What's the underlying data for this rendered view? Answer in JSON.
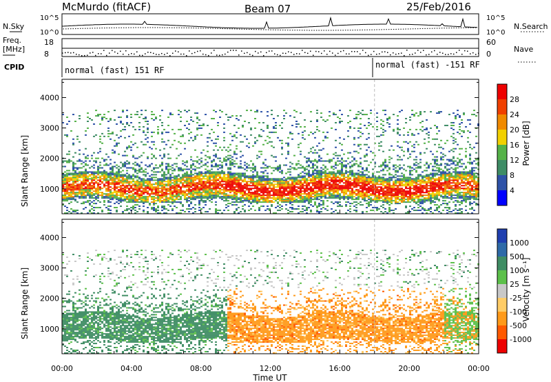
{
  "header": {
    "radar": "McMurdo (fitACF)",
    "beam": "Beam 07",
    "date": "25/Feb/2016"
  },
  "strip": {
    "nsky_label": "N.Sky",
    "nsearch_label": "N.Search",
    "nsky_ticks": [
      "10^5",
      "10^0"
    ],
    "nsearch_ticks": [
      "10^5",
      "10^0"
    ],
    "freq_label_1": "Freq.",
    "freq_label_2": "[MHz]",
    "freq_ticks": [
      "18",
      "8"
    ],
    "nave_label": "Nave",
    "nave_ticks": [
      "60",
      "0"
    ],
    "cpid_label": "CPID",
    "cpid_segments": [
      {
        "label": "normal (fast) 151 RF",
        "start_hour": 0
      },
      {
        "label": "normal (fast) -151 RF",
        "start_hour": 18
      }
    ]
  },
  "chart_data": [
    {
      "type": "heatmap",
      "name": "power",
      "ylabel": "Slant Range [km]",
      "yticks": [
        1000,
        2000,
        3000,
        4000
      ],
      "ylim": [
        180,
        4600
      ],
      "xlim": [
        0,
        24
      ],
      "colorbar": {
        "label": "Power [dB]",
        "ticks": [
          "4",
          "8",
          "12",
          "16",
          "20",
          "24",
          "28"
        ],
        "colors": [
          "#0000ff",
          "#2e52a8",
          "#3e8c65",
          "#55b248",
          "#f2d000",
          "#f08a00",
          "#f04000",
          "#ee0000"
        ]
      }
    },
    {
      "type": "heatmap",
      "name": "velocity",
      "ylabel": "Slant Range [km]",
      "yticks": [
        1000,
        2000,
        3000,
        4000
      ],
      "ylim": [
        180,
        4600
      ],
      "xlim": [
        0,
        24
      ],
      "xlabel": "Time UT",
      "xticks": [
        "00:00",
        "04:00",
        "08:00",
        "12:00",
        "16:00",
        "20:00",
        "00:00"
      ],
      "colorbar": {
        "label": "Velocity [m s⁻¹]",
        "ticks": [
          "1000",
          "500",
          "100",
          "25",
          "-25",
          "-100",
          "-500",
          "-1000"
        ],
        "colors": [
          "#1f3fb0",
          "#2e6aa8",
          "#3f8d64",
          "#5cc04a",
          "#c8c8c8",
          "#ffcc66",
          "#ff9a1a",
          "#ff5a00",
          "#ee0000"
        ]
      }
    }
  ]
}
